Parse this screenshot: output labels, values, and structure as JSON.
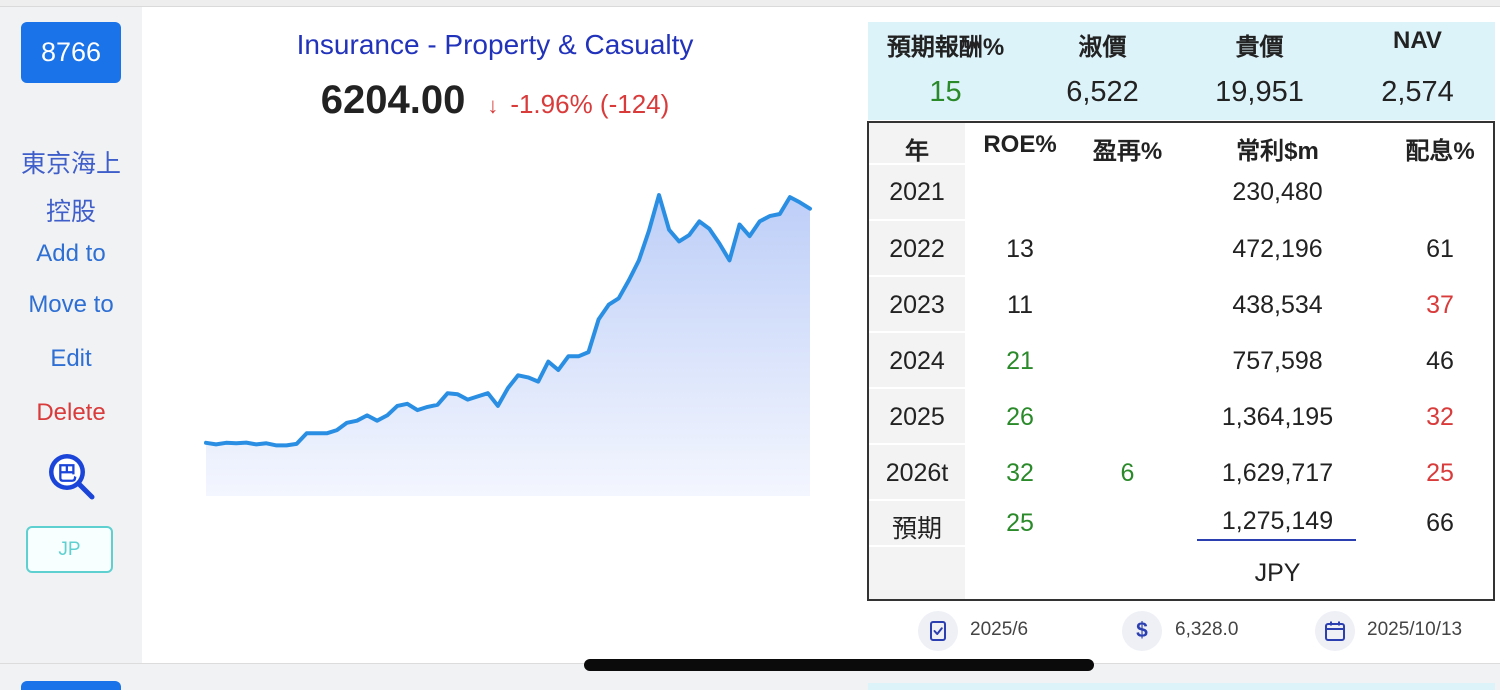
{
  "stock": {
    "code": "8766",
    "name_line1": "東京海上",
    "name_line2": "控股",
    "market": "JP"
  },
  "sidebar": {
    "add_to": "Add to",
    "move_to": "Move to",
    "edit": "Edit",
    "delete": "Delete",
    "search_icon_char": "巴"
  },
  "header": {
    "industry": "Insurance - Property & Casualty",
    "price": "6204.00",
    "arrow": "↓",
    "change": "-1.96% (-124)"
  },
  "summary": {
    "headers": [
      "預期報酬%",
      "淑價",
      "貴價",
      "NAV"
    ],
    "values": [
      "15",
      "6,522",
      "19,951",
      "2,574"
    ]
  },
  "table": {
    "headers": [
      "年",
      "ROE%",
      "盈再%",
      "常利$m",
      "配息%"
    ],
    "rows": [
      {
        "year": "2021",
        "roe": "",
        "reinvest": "",
        "profit": "230,480",
        "dividend": ""
      },
      {
        "year": "2022",
        "roe": "13",
        "reinvest": "",
        "profit": "472,196",
        "dividend": "61"
      },
      {
        "year": "2023",
        "roe": "11",
        "reinvest": "",
        "profit": "438,534",
        "dividend": "37"
      },
      {
        "year": "2024",
        "roe": "21",
        "reinvest": "",
        "profit": "757,598",
        "dividend": "46"
      },
      {
        "year": "2025",
        "roe": "26",
        "reinvest": "",
        "profit": "1,364,195",
        "dividend": "32"
      },
      {
        "year": "2026t",
        "roe": "32",
        "reinvest": "6",
        "profit": "1,629,717",
        "dividend": "25"
      },
      {
        "year": "預期",
        "roe": "25",
        "reinvest": "",
        "profit": "1,275,149",
        "dividend": "66"
      }
    ],
    "currency": "JPY"
  },
  "footer": {
    "report_period": "2025/6",
    "price_value": "6,328.0",
    "date": "2025/10/13"
  },
  "colors": {
    "accent": "#1a73e8",
    "green": "#2a8a2a",
    "red": "#d93b3b",
    "summary_bg": "#ddf3fa",
    "chart_line": "#2a8fe3"
  },
  "chart_data": {
    "type": "area",
    "title": "",
    "xlabel": "",
    "ylabel": "",
    "values": [
      2.2,
      2.05,
      2.2,
      2.15,
      2.22,
      2.05,
      2.15,
      1.95,
      1.95,
      2.1,
      3.1,
      3.1,
      3.1,
      3.4,
      4.1,
      4.3,
      4.8,
      4.3,
      4.8,
      5.7,
      5.9,
      5.3,
      5.6,
      5.8,
      6.9,
      6.8,
      6.3,
      6.6,
      6.9,
      5.7,
      7.4,
      8.6,
      8.4,
      8.0,
      9.9,
      9.1,
      10.4,
      10.4,
      10.8,
      13.9,
      15.3,
      15.9,
      17.6,
      19.5,
      22.3,
      25.7,
      22.4,
      21.3,
      21.9,
      23.2,
      22.5,
      21.1,
      19.5,
      22.9,
      21.8,
      23.2,
      23.7,
      23.9,
      25.5,
      25.0,
      24.4
    ]
  }
}
